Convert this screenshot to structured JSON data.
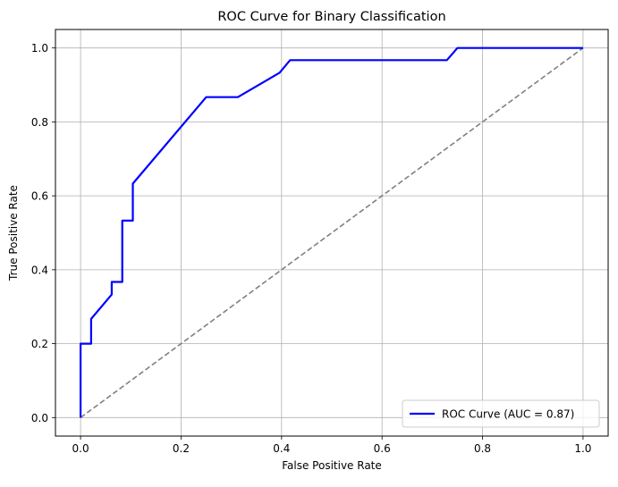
{
  "chart_data": {
    "type": "line",
    "title": "ROC Curve for Binary Classification",
    "xlabel": "False Positive Rate",
    "ylabel": "True Positive Rate",
    "xlim": [
      -0.05,
      1.05
    ],
    "ylim": [
      -0.05,
      1.05
    ],
    "xticks": [
      0.0,
      0.2,
      0.4,
      0.6,
      0.8,
      1.0
    ],
    "yticks": [
      0.0,
      0.2,
      0.4,
      0.6,
      0.8,
      1.0
    ],
    "tick_labels": [
      "0.0",
      "0.2",
      "0.4",
      "0.6",
      "0.8",
      "1.0"
    ],
    "grid": true,
    "legend_position": "lower right",
    "series": [
      {
        "name": "ROC Curve (AUC = 0.87)",
        "color": "#0000ff",
        "style": "solid",
        "x": [
          0.0,
          0.0,
          0.021,
          0.021,
          0.062,
          0.062,
          0.083,
          0.083,
          0.104,
          0.104,
          0.25,
          0.313,
          0.396,
          0.417,
          0.729,
          0.75,
          1.0
        ],
        "y": [
          0.0,
          0.2,
          0.2,
          0.267,
          0.333,
          0.367,
          0.367,
          0.533,
          0.533,
          0.633,
          0.867,
          0.867,
          0.933,
          0.967,
          0.967,
          1.0,
          1.0
        ]
      },
      {
        "color": "#808080",
        "style": "dashed",
        "x": [
          0.0,
          1.0
        ],
        "y": [
          0.0,
          1.0
        ]
      }
    ]
  }
}
